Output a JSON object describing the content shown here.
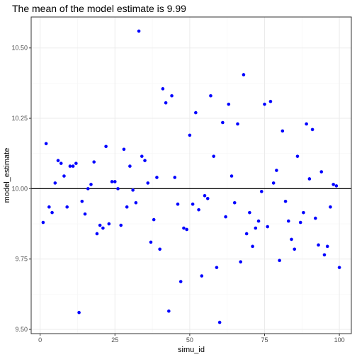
{
  "chart_data": {
    "type": "scatter",
    "title": "The mean of the model estimate is  9.99",
    "xlabel": "simu_id",
    "ylabel": "model_estimate",
    "xlim": [
      -3,
      104
    ],
    "ylim": [
      9.485,
      10.61
    ],
    "x_ticks": [
      0,
      25,
      50,
      75,
      100
    ],
    "x_tick_labels": [
      "0",
      "25",
      "50",
      "75",
      "100"
    ],
    "y_ticks": [
      9.5,
      9.75,
      10.0,
      10.25,
      10.5
    ],
    "y_tick_labels": [
      "9.50",
      "9.75",
      "10.00",
      "10.25",
      "10.50"
    ],
    "reference_line": {
      "y": 10.0,
      "color": "#000000"
    },
    "point_color": "#0000ff",
    "grid": true,
    "series": [
      {
        "x": [
          1,
          2,
          3,
          4,
          5,
          6,
          7,
          8,
          9,
          10,
          11,
          12,
          13,
          14,
          15,
          16,
          17,
          18,
          19,
          20,
          21,
          22,
          23,
          24,
          25,
          26,
          27,
          28,
          29,
          30,
          31,
          32,
          33,
          34,
          35,
          36,
          37,
          38,
          39,
          40,
          41,
          42,
          43,
          44,
          45,
          46,
          47,
          48,
          49,
          50,
          51,
          52,
          53,
          54,
          55,
          56,
          57,
          58,
          59,
          60,
          61,
          62,
          63,
          64,
          65,
          66,
          67,
          68,
          69,
          70,
          71,
          72,
          73,
          74,
          75,
          76,
          77,
          78,
          79,
          80,
          81,
          82,
          83,
          84,
          85,
          86,
          87,
          88,
          89,
          90,
          91,
          92,
          93,
          94,
          95,
          96,
          97,
          98,
          99,
          100
        ],
        "y": [
          9.88,
          10.16,
          9.935,
          9.915,
          10.02,
          10.1,
          10.09,
          10.045,
          9.935,
          10.08,
          10.08,
          10.09,
          9.56,
          9.955,
          9.91,
          10.0,
          10.015,
          10.095,
          9.84,
          9.87,
          9.86,
          10.15,
          9.875,
          10.025,
          10.025,
          10.0,
          9.87,
          10.14,
          9.935,
          10.08,
          9.995,
          9.95,
          10.56,
          10.115,
          10.1,
          10.02,
          9.81,
          9.89,
          10.04,
          9.785,
          10.355,
          10.305,
          9.565,
          10.33,
          10.04,
          9.945,
          9.67,
          9.86,
          9.855,
          10.19,
          9.945,
          10.27,
          9.925,
          9.69,
          9.975,
          9.965,
          10.33,
          10.115,
          9.72,
          9.525,
          10.235,
          9.9,
          10.3,
          10.045,
          9.95,
          10.23,
          9.74,
          10.405,
          9.84,
          9.915,
          9.795,
          9.86,
          9.885,
          9.99,
          10.3,
          9.865,
          10.31,
          10.02,
          10.065,
          9.745,
          10.205,
          9.955,
          9.885,
          9.82,
          9.785,
          10.115,
          9.88,
          9.915,
          10.23,
          10.035,
          10.21,
          9.895,
          9.8,
          10.06,
          9.765,
          9.795,
          9.935,
          10.015,
          10.01,
          9.72
        ]
      }
    ]
  }
}
